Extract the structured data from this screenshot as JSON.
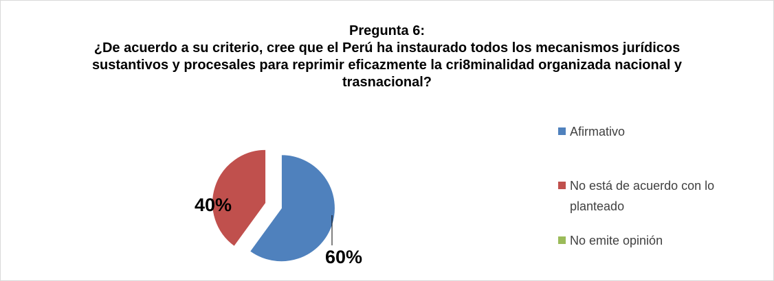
{
  "chart_data": {
    "type": "pie",
    "title": "Pregunta 6:",
    "subtitle": "¿De acuerdo a su criterio, cree que el Perú ha instaurado todos los mecanismos jurídicos sustantivos y procesales para reprimir eficazmente la cri8minalidad organizada nacional y trasnacional?",
    "categories": [
      "Afirmativo",
      "No está de acuerdo con lo planteado",
      "No emite opinión"
    ],
    "values": [
      60,
      40,
      0
    ],
    "value_labels": [
      "60%",
      "40%",
      null
    ],
    "colors": [
      "#4f81bd",
      "#c0504d",
      "#9bbb59"
    ],
    "legend": "right"
  }
}
